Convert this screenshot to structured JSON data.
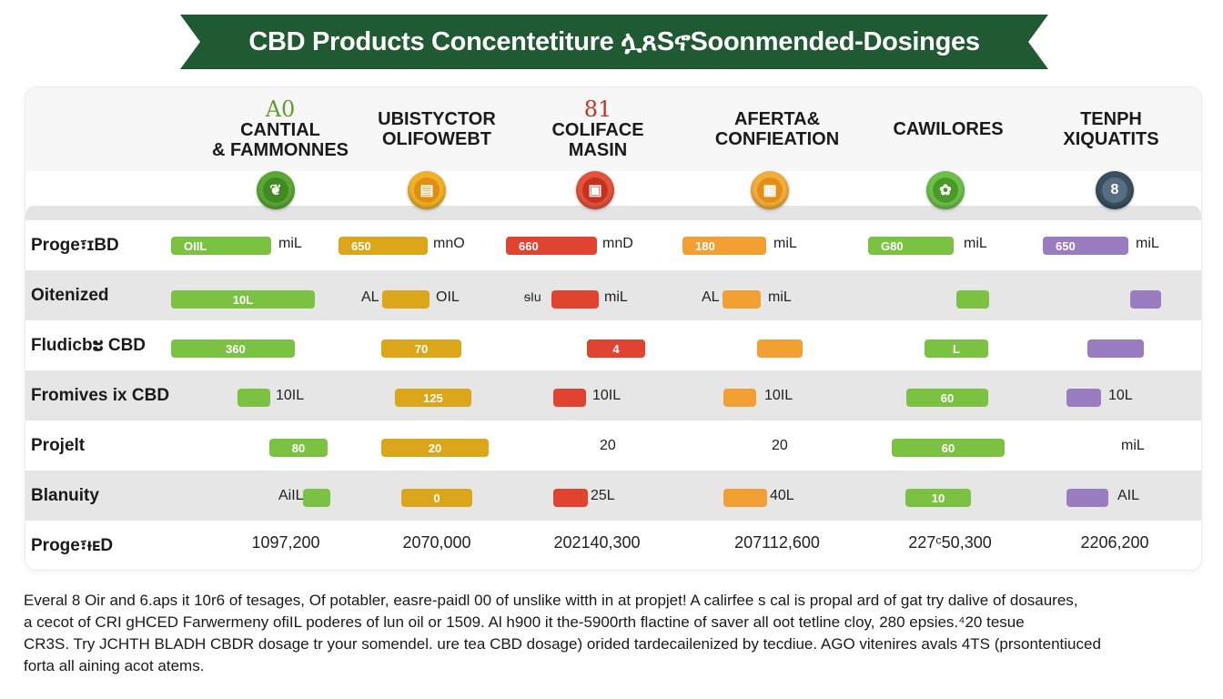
{
  "title": "CBD Products Concentetiture ሏጸSኖSoonmended-Dosinges",
  "columns": [
    {
      "num": "A0",
      "line1": "CANTIAL",
      "line2": "& FAMMONNES",
      "color": "#7cc242",
      "icon": "leaf-icon"
    },
    {
      "num": "",
      "line1": "UBISTYCTOR",
      "line2": "OLIFOWEBT",
      "color": "#e8a317",
      "icon": "jar-icon"
    },
    {
      "num": "81",
      "line1": "COLIFACE",
      "line2": "MASIN",
      "color": "#e0432f",
      "icon": "bottle-icon"
    },
    {
      "num": "",
      "line1": "AFERTA&",
      "line2": "CONFIEATION",
      "color": "#f2a033",
      "icon": "box-icon"
    },
    {
      "num": "",
      "line1": "CAWILORES",
      "line2": "",
      "color": "#6fba3f",
      "icon": "herb-icon"
    },
    {
      "num": "",
      "line1": "TENPH",
      "line2": "XIQUATITS",
      "color": "#3e5566",
      "icon": "capsule-icon"
    }
  ],
  "rows": [
    {
      "label": "Proge፣ɪBD"
    },
    {
      "label": "Oitenized"
    },
    {
      "label": "Fludicbະ CBD"
    },
    {
      "label": "Fromives ix CBD"
    },
    {
      "label": "Projelt"
    },
    {
      "label": "Blanuity"
    },
    {
      "label": "Proge፣ᵻᴇD"
    }
  ],
  "cells": {
    "r0": [
      {
        "bar": "OIIL",
        "unit": "miL"
      },
      {
        "bar": "650",
        "unit": "mnO"
      },
      {
        "bar": "660",
        "unit": "mnD"
      },
      {
        "bar": "180",
        "unit": "miL"
      },
      {
        "bar": "G80",
        "unit": "miL"
      },
      {
        "bar": "650",
        "unit": "miL"
      }
    ],
    "r1": [
      {
        "bar": "10L"
      },
      {
        "pre": "AL",
        "unit": "OIL"
      },
      {
        "pre": "ᵴIu",
        "unit": "miL"
      },
      {
        "pre": "AL",
        "unit": "miL"
      },
      {},
      {}
    ],
    "r2": [
      "360",
      "70",
      "4",
      "",
      "L",
      ""
    ],
    "r3": [
      {
        "unit": "10IL"
      },
      {
        "bar": "125"
      },
      {
        "unit": "10IL"
      },
      {
        "unit": "10IL"
      },
      {
        "bar": "60"
      },
      {
        "unit": "10L"
      }
    ],
    "r4": [
      "80",
      "20",
      "20",
      "20",
      "60",
      "miL"
    ],
    "r5": [
      {
        "pre": "AiIL"
      },
      {
        "bar": "0"
      },
      {
        "unit": "25L"
      },
      {
        "unit": "40L"
      },
      {
        "bar": "10"
      },
      {
        "unit": "AIL"
      }
    ],
    "r6": [
      "1097,200",
      "2070,000",
      "202140,300",
      "207112,600",
      "227ᶜ50,300",
      "2206,200"
    ]
  },
  "colors": {
    "banner": "#1f5a32",
    "green": "#7cc242",
    "amber": "#dba619",
    "red": "#e0432f",
    "orange": "#f2a033",
    "green2": "#7cc242",
    "purple": "#9a7cc0"
  },
  "footer": [
    "Everal 8 Oir and 6.aps it 10r6 of tesages, Of potabler, easre-paidl 00 of unslike witth in at propjet! A calirfee s cal is propal ard of gat try dalive of dosaures,",
    "a cecot of CRI gHCED Farwermeny ofiIL poderes of lun oil or 1509. Al h900 it the-5900rth flactine of saver all oot tetline cloy, 280 epsies.⁴20 tesue",
    "CR3S. Try JCHTH BLADH CBDR dosage tr your somendel. ure tea CBD dosage) orided tardecailenized by tecdiue. AGO vitenires avals 4TS (prsontentiuced",
    "forta all aining acot atems."
  ]
}
